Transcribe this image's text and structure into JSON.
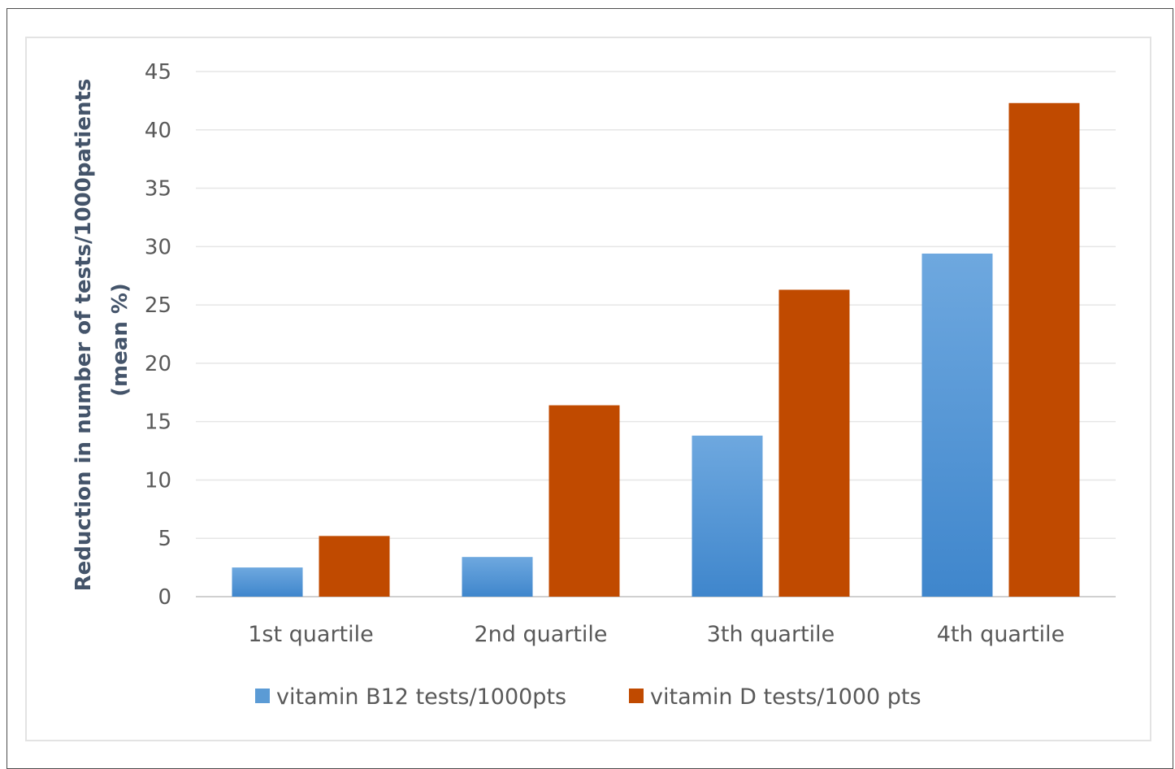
{
  "chart_data": {
    "type": "bar",
    "categories": [
      "1st quartile",
      "2nd quartile",
      "3th quartile",
      "4th quartile"
    ],
    "series": [
      {
        "name": "vitamin B12 tests/1000pts",
        "values": [
          2.5,
          3.4,
          13.8,
          29.4
        ],
        "color": "#5b9bd5"
      },
      {
        "name": "vitamin D tests/1000 pts",
        "values": [
          5.2,
          16.4,
          26.3,
          42.3
        ],
        "color": "#c04a00"
      }
    ],
    "ylabel_line1": "Reduction in number of tests/1000patients",
    "ylabel_line2": "(mean %)",
    "xlabel": "",
    "title": "",
    "ylim": [
      0,
      45
    ],
    "yticks": [
      0,
      5,
      10,
      15,
      20,
      25,
      30,
      35,
      40,
      45
    ],
    "grid": true,
    "legend_position": "bottom"
  }
}
